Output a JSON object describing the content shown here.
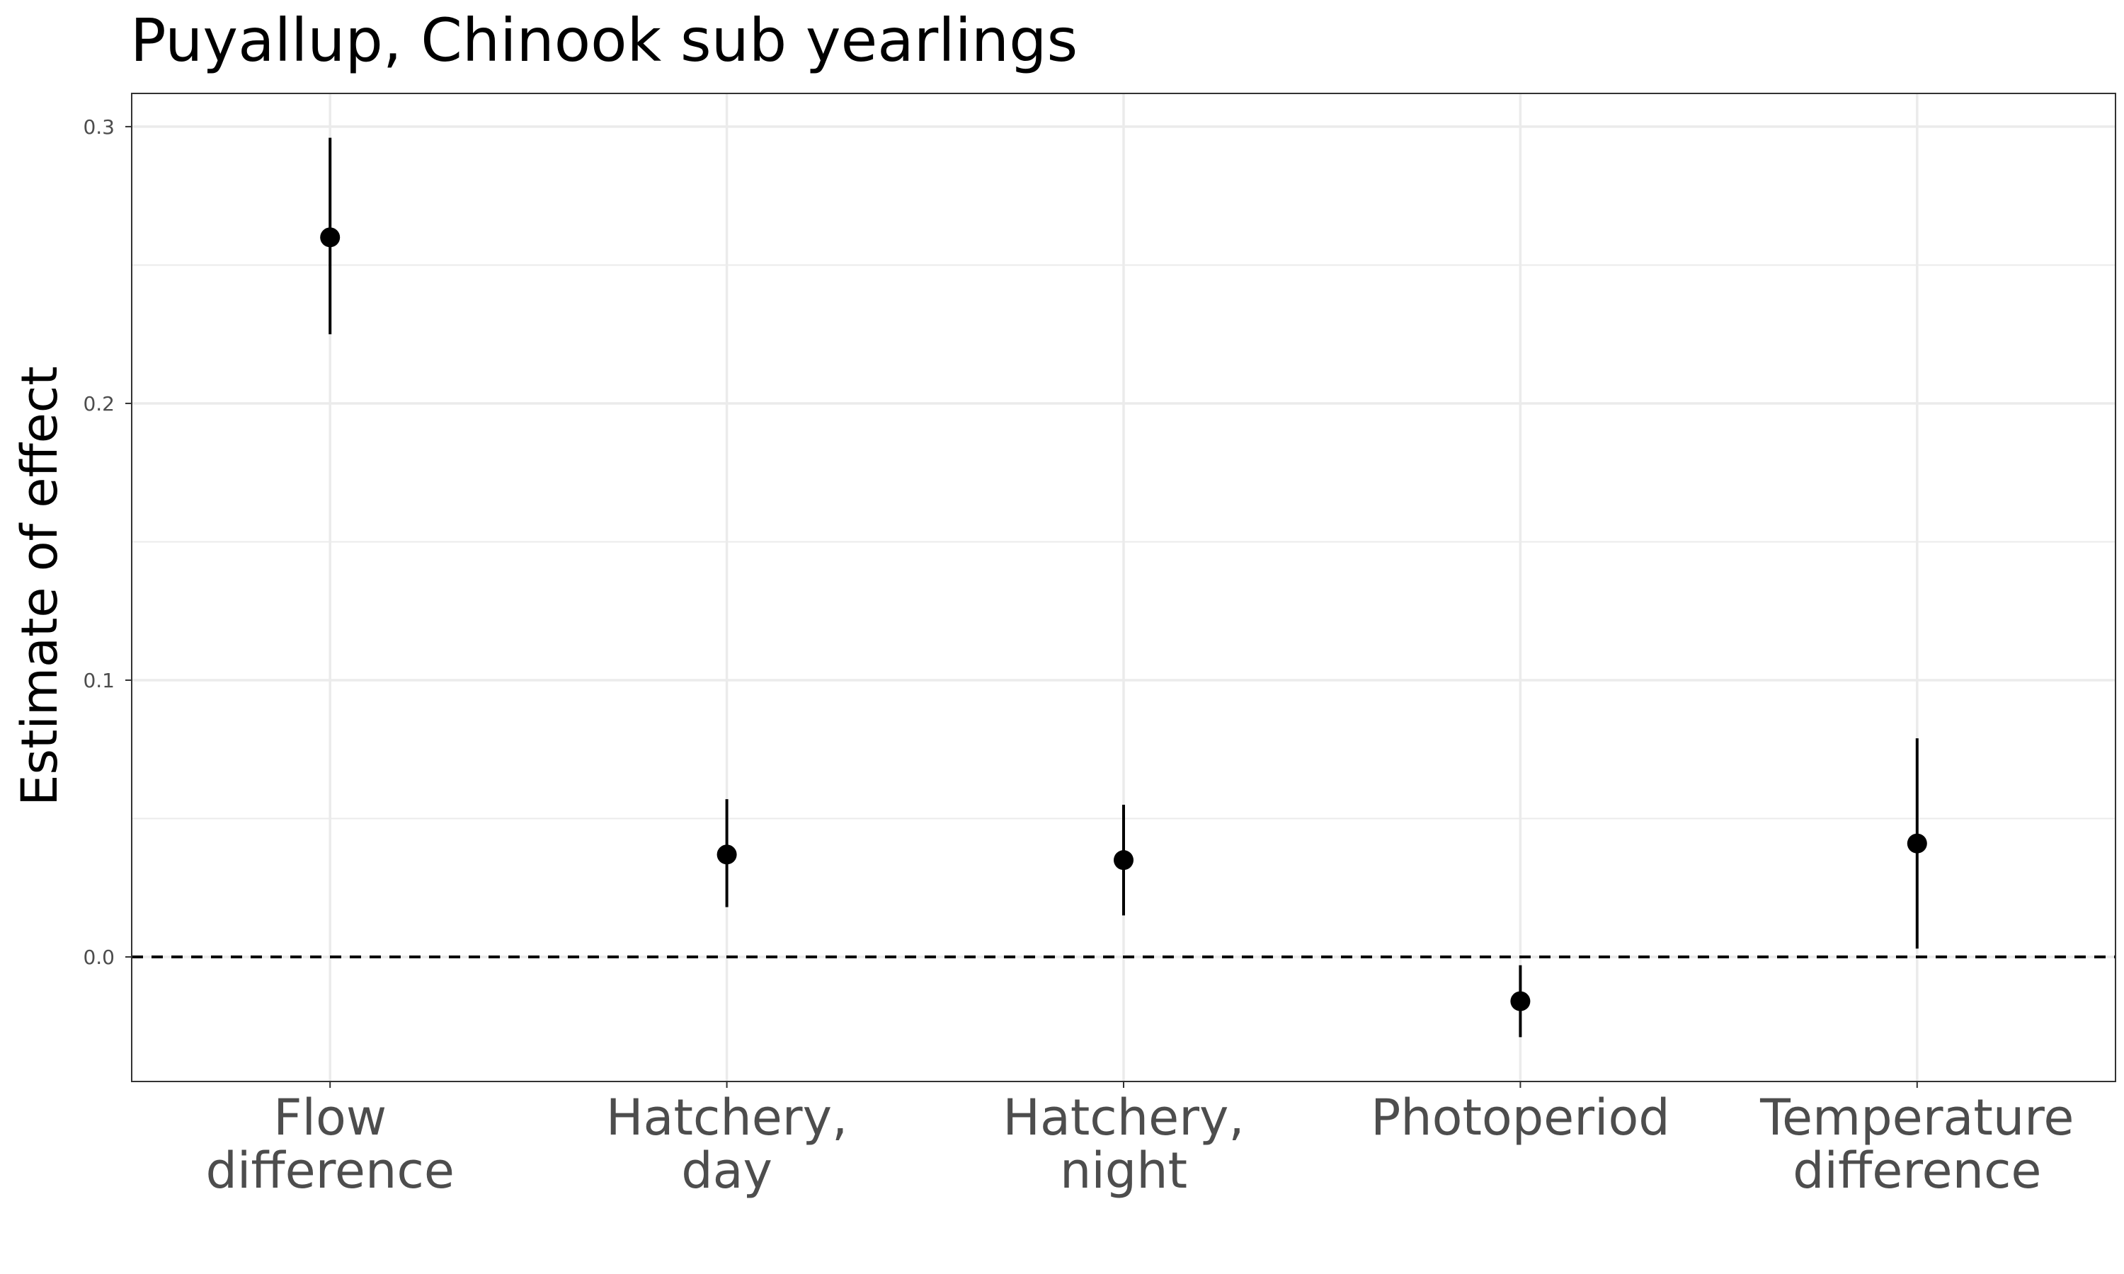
{
  "chart_data": {
    "type": "scatter",
    "subtype": "point-range",
    "title": "Puyallup, Chinook sub yearlings",
    "xlabel": "",
    "ylabel": "Estimate of effect",
    "ylim": [
      -0.045,
      0.312
    ],
    "yticks": [
      "0.0",
      "0.1",
      "0.2",
      "0.3"
    ],
    "ytick_values": [
      0.0,
      0.1,
      0.2,
      0.3
    ],
    "minor_gridlines": [
      0.05,
      0.15,
      0.25
    ],
    "reference_line": {
      "y": 0.0,
      "style": "dashed"
    },
    "grid": true,
    "categories": [
      [
        "Flow",
        "difference"
      ],
      [
        "Hatchery,",
        "day"
      ],
      [
        "Hatchery,",
        "night"
      ],
      [
        "Photoperiod"
      ],
      [
        "Temperature",
        "difference"
      ]
    ],
    "points": [
      {
        "estimate": 0.26,
        "lower": 0.225,
        "upper": 0.296
      },
      {
        "estimate": 0.037,
        "lower": 0.018,
        "upper": 0.057
      },
      {
        "estimate": 0.035,
        "lower": 0.015,
        "upper": 0.055
      },
      {
        "estimate": -0.016,
        "lower": -0.029,
        "upper": -0.003
      },
      {
        "estimate": 0.041,
        "lower": 0.003,
        "upper": 0.079
      }
    ],
    "colors": {
      "point": "#000000",
      "grid": "#ebebeb",
      "axis_text": "#4d4d4d",
      "panel_border": "#333333"
    }
  }
}
